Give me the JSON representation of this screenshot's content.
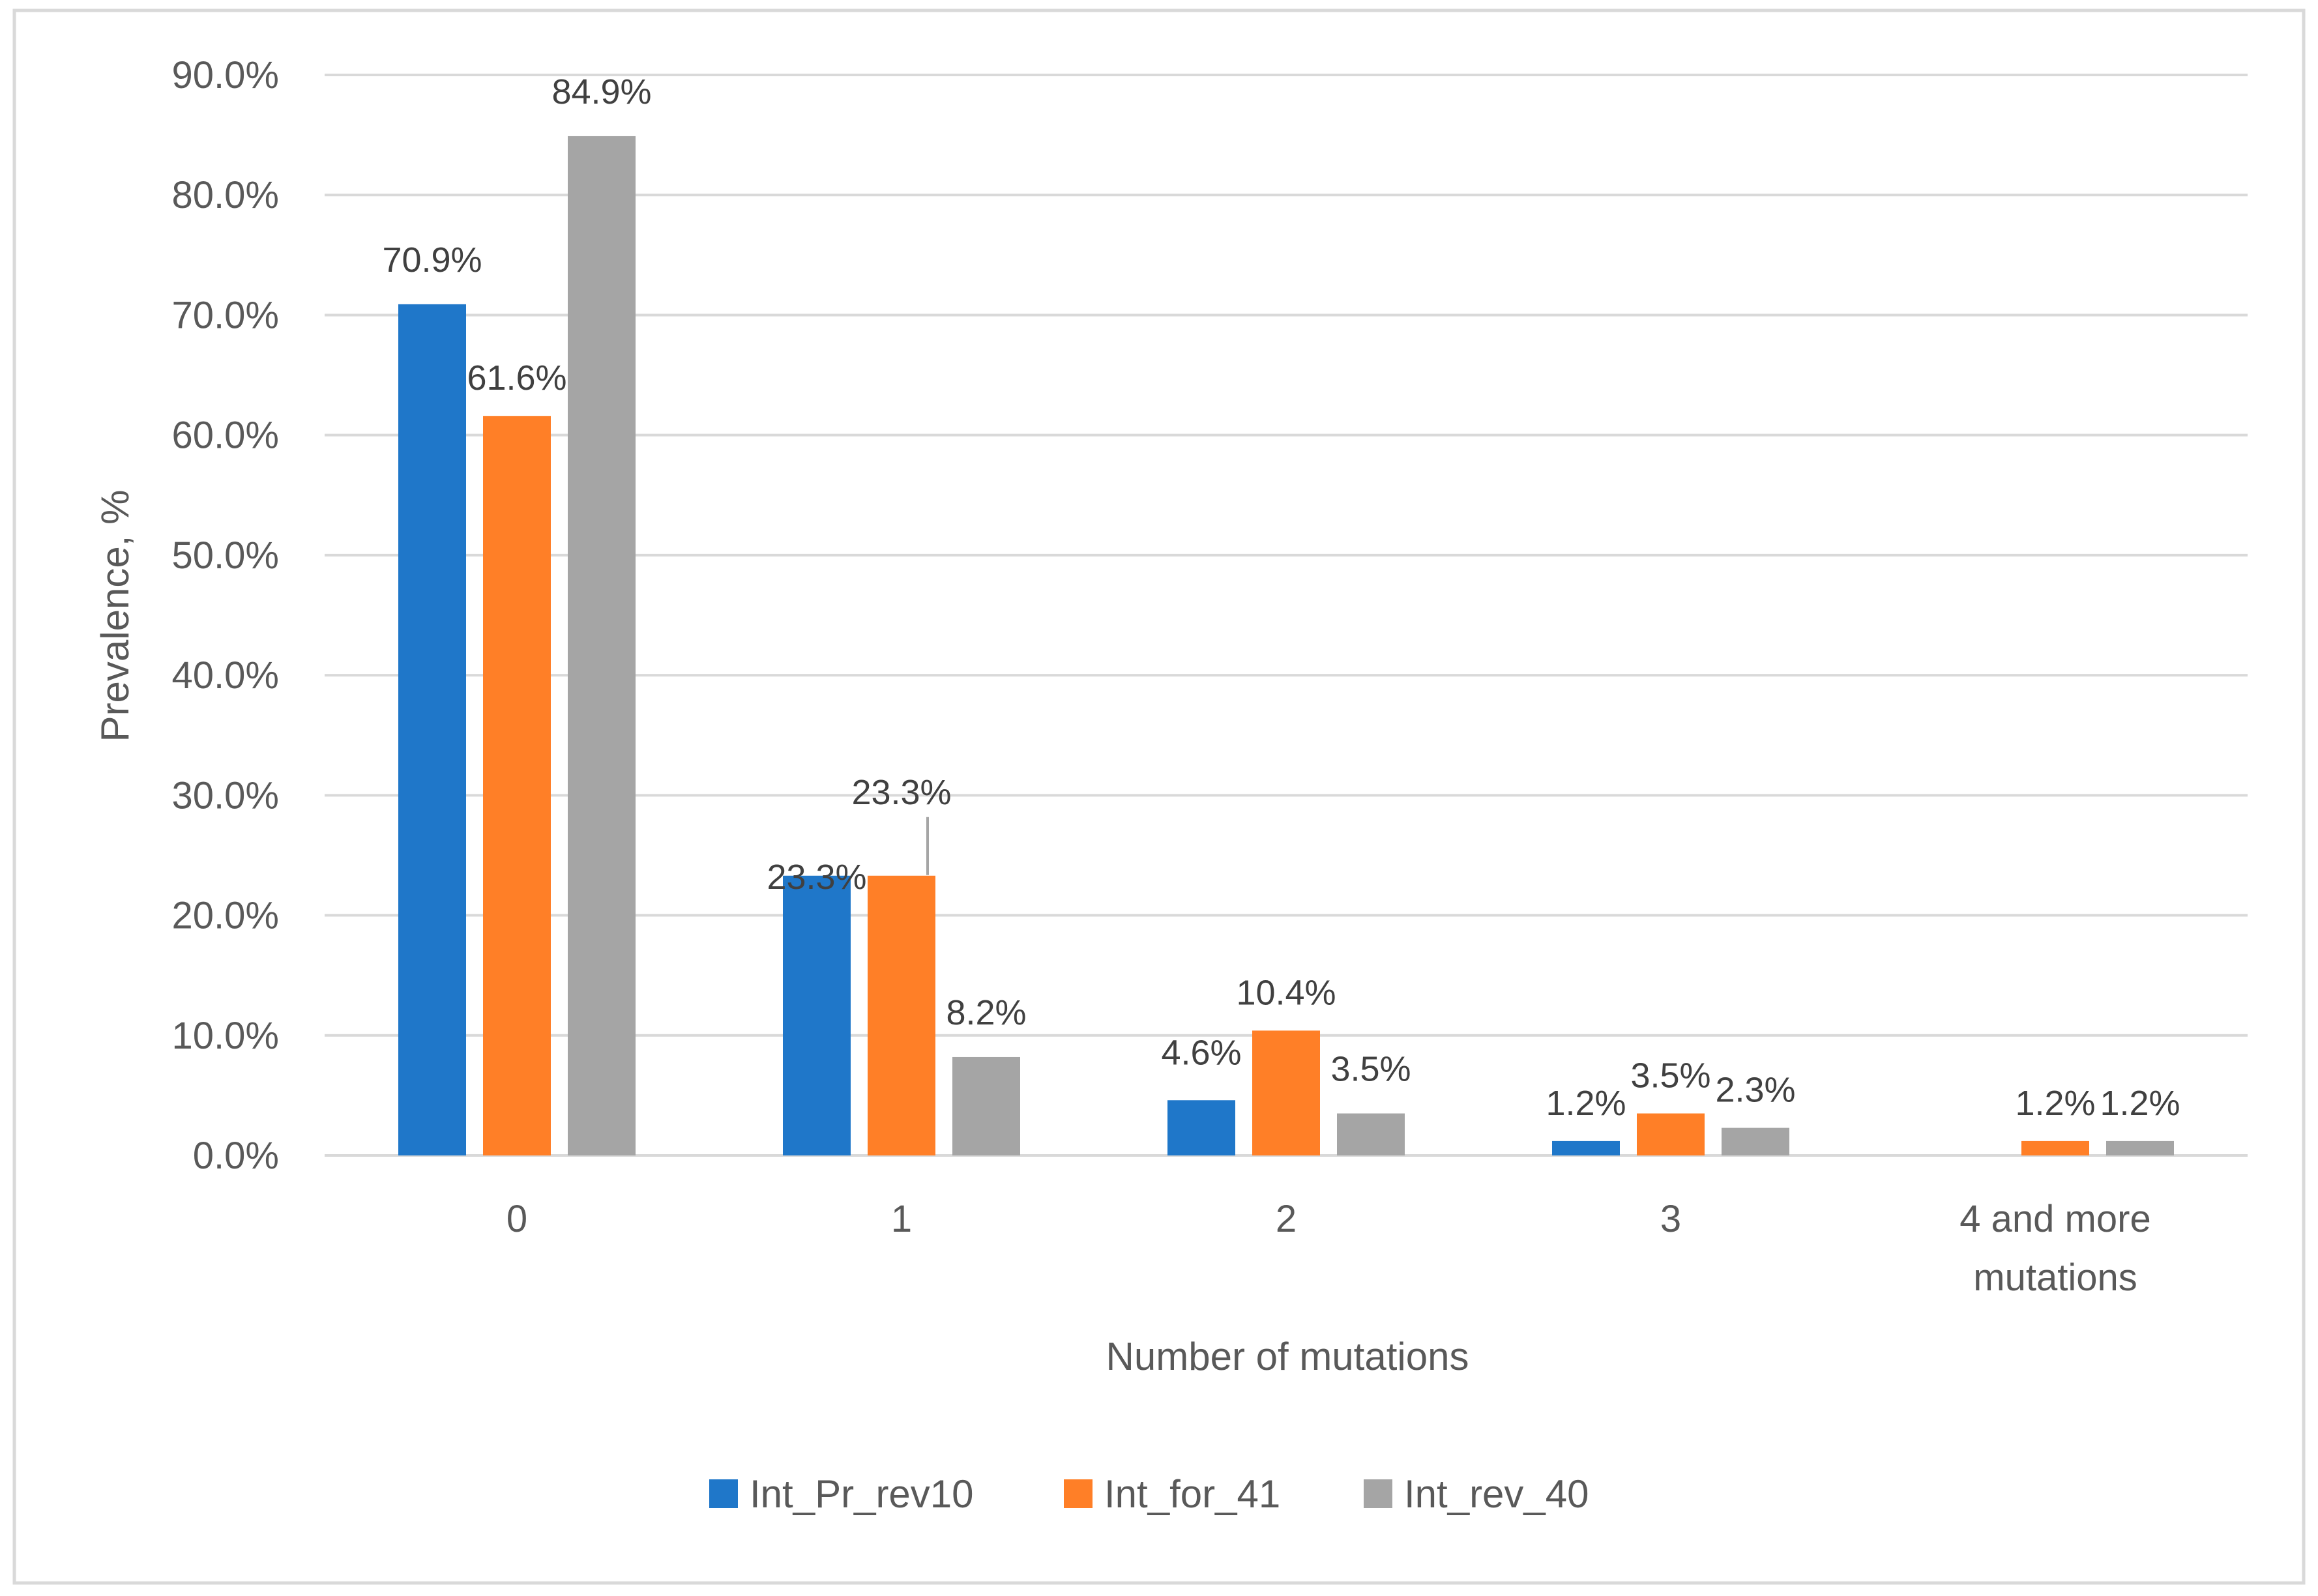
{
  "chart_data": {
    "type": "bar",
    "title": "",
    "xlabel": "Number of mutations",
    "ylabel": "Prevalence, %",
    "categories": [
      "0",
      "1",
      "2",
      "3",
      "4 and more mutations"
    ],
    "category_lines": [
      [
        "0"
      ],
      [
        "1"
      ],
      [
        "2"
      ],
      [
        "3"
      ],
      [
        "4 and more",
        "mutations"
      ]
    ],
    "ylim": [
      0,
      90
    ],
    "ytick_step": 10,
    "yticks": [
      "0.0%",
      "10.0%",
      "20.0%",
      "30.0%",
      "40.0%",
      "50.0%",
      "60.0%",
      "70.0%",
      "80.0%",
      "90.0%"
    ],
    "grid": true,
    "legend_position": "bottom",
    "series": [
      {
        "name": "Int_Pr_rev10",
        "color": "#1F77C9",
        "values": [
          70.9,
          23.3,
          4.6,
          1.2,
          null
        ],
        "labels": [
          "70.9%",
          "23.3%",
          "4.6%",
          "1.2%",
          null
        ]
      },
      {
        "name": "Int_for_41",
        "color": "#FF7F27",
        "values": [
          61.6,
          23.3,
          10.4,
          3.5,
          1.2
        ],
        "labels": [
          "61.6%",
          "23.3%",
          "10.4%",
          "3.5%",
          "1.2%"
        ]
      },
      {
        "name": "Int_rev_40",
        "color": "#A5A5A5",
        "values": [
          84.9,
          8.2,
          3.5,
          2.3,
          1.2
        ],
        "labels": [
          "84.9%",
          "8.2%",
          "3.5%",
          "2.3%",
          "1.2%"
        ]
      }
    ]
  },
  "colors": {
    "gridline": "#D9D9D9",
    "axis_text": "#595959",
    "data_label_text": "#404040",
    "frame_border": "#D9D9D9"
  }
}
